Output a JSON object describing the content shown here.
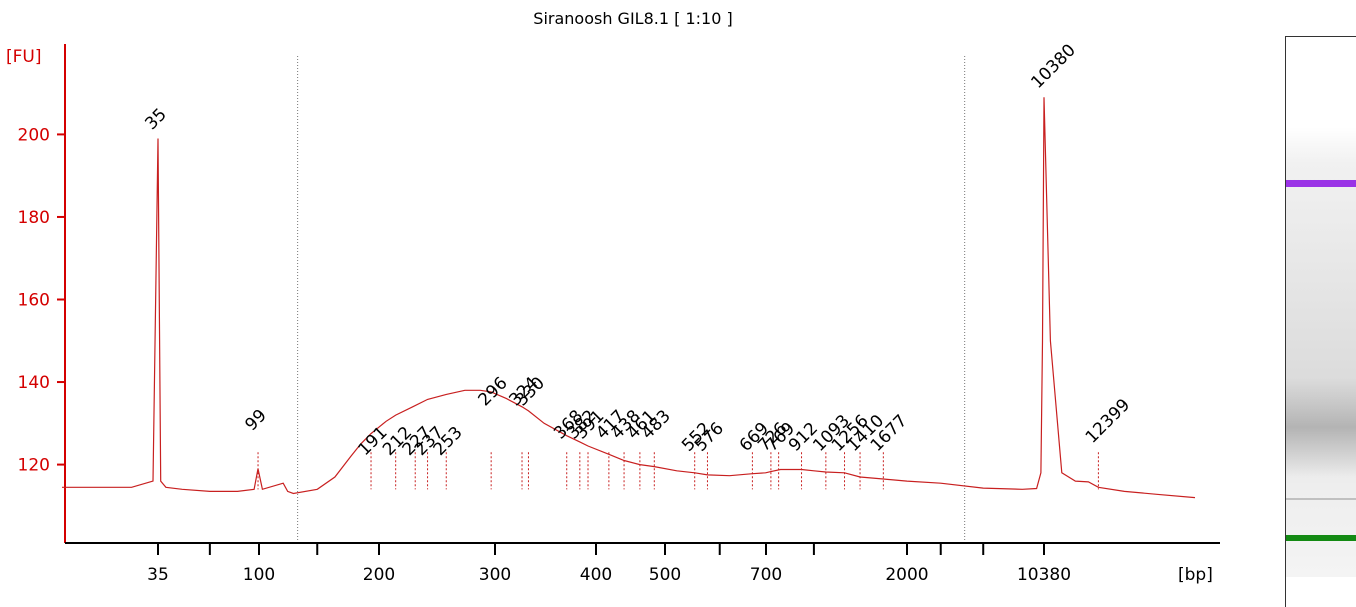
{
  "chart_data": {
    "type": "line",
    "title": "Siranoosh GIL8.1  [ 1:10 ]",
    "ylabel": "[FU]",
    "xlabel": "[bp]",
    "ylim": [
      101,
      219
    ],
    "yticks": [
      "120",
      "140",
      "160",
      "180",
      "200"
    ],
    "xtick_labels": [
      "35",
      "100",
      "200",
      "300",
      "400",
      "500",
      "700",
      "2000",
      "10380"
    ],
    "series": [
      {
        "line_color": "#c82020",
        "x_bp": [
          20,
          30,
          34,
          35,
          36,
          38,
          45,
          60,
          80,
          95,
          99,
          102,
          115,
          118,
          122,
          140,
          155,
          170,
          180,
          191,
          205,
          212,
          225,
          237,
          253,
          270,
          285,
          296,
          310,
          324,
          330,
          345,
          368,
          382,
          391,
          417,
          438,
          461,
          483,
          520,
          552,
          576,
          620,
          669,
          699,
          726,
          780,
          912,
          1000,
          1093,
          1256,
          1410,
          1677,
          2000,
          3000,
          5000,
          8000,
          9500,
          10000,
          10200,
          10380,
          10600,
          11000,
          11500,
          12000,
          12399,
          13500,
          15000,
          17000
        ],
        "y_fu": [
          114.5,
          114.5,
          116,
          199,
          116,
          114.5,
          114,
          113.5,
          113.5,
          114,
          119,
          114,
          115.5,
          113.5,
          113,
          114,
          117,
          122,
          125,
          127.5,
          130.5,
          132,
          134,
          135.8,
          137,
          138,
          138,
          137.6,
          136,
          134,
          133,
          130,
          127,
          125.5,
          124.5,
          122.5,
          121,
          120,
          119.5,
          118.5,
          118,
          117.5,
          117.3,
          117.8,
          118,
          118.3,
          118.8,
          118.8,
          118.5,
          118.2,
          118,
          117,
          116.5,
          116,
          115.5,
          114.3,
          114,
          114.2,
          118,
          150,
          209,
          150,
          118,
          116,
          115.8,
          114.5,
          113.5,
          112.8,
          112
        ]
      }
    ],
    "markers": [
      {
        "label": "35",
        "x_bp": 35,
        "y_fu": 199,
        "color": "#138a13"
      },
      {
        "label": "10380",
        "x_bp": 10380,
        "y_fu": 209,
        "color": "#9a33e6"
      }
    ],
    "peak_labels": [
      {
        "label": "99",
        "x_bp": 99
      },
      {
        "label": "191",
        "x_bp": 191
      },
      {
        "label": "212",
        "x_bp": 212
      },
      {
        "label": "227",
        "x_bp": 227
      },
      {
        "label": "237",
        "x_bp": 237
      },
      {
        "label": "253",
        "x_bp": 253
      },
      {
        "label": "296",
        "x_bp": 296
      },
      {
        "label": "324",
        "x_bp": 324
      },
      {
        "label": "330",
        "x_bp": 330
      },
      {
        "label": "368",
        "x_bp": 368
      },
      {
        "label": "382",
        "x_bp": 382
      },
      {
        "label": "391",
        "x_bp": 391
      },
      {
        "label": "417",
        "x_bp": 417
      },
      {
        "label": "438",
        "x_bp": 438
      },
      {
        "label": "461",
        "x_bp": 461
      },
      {
        "label": "483",
        "x_bp": 483
      },
      {
        "label": "552",
        "x_bp": 552
      },
      {
        "label": "576",
        "x_bp": 576
      },
      {
        "label": "669",
        "x_bp": 669
      },
      {
        "label": "726",
        "x_bp": 726
      },
      {
        "label": "769",
        "x_bp": 769
      },
      {
        "label": "912",
        "x_bp": 912
      },
      {
        "label": "1093",
        "x_bp": 1093
      },
      {
        "label": "1256",
        "x_bp": 1256
      },
      {
        "label": "1410",
        "x_bp": 1410
      },
      {
        "label": "1677",
        "x_bp": 1677
      },
      {
        "label": "12399",
        "x_bp": 12399
      }
    ],
    "region_markers_bp": [
      125,
      4000
    ],
    "gel_bands": [
      {
        "color": "#9a33e6",
        "strength": "strong"
      },
      {
        "color": "#c0c0c0",
        "strength": "faint"
      },
      {
        "color": "#8a8a8a",
        "strength": "smear"
      },
      {
        "color": "#138a13",
        "strength": "strong"
      }
    ]
  }
}
